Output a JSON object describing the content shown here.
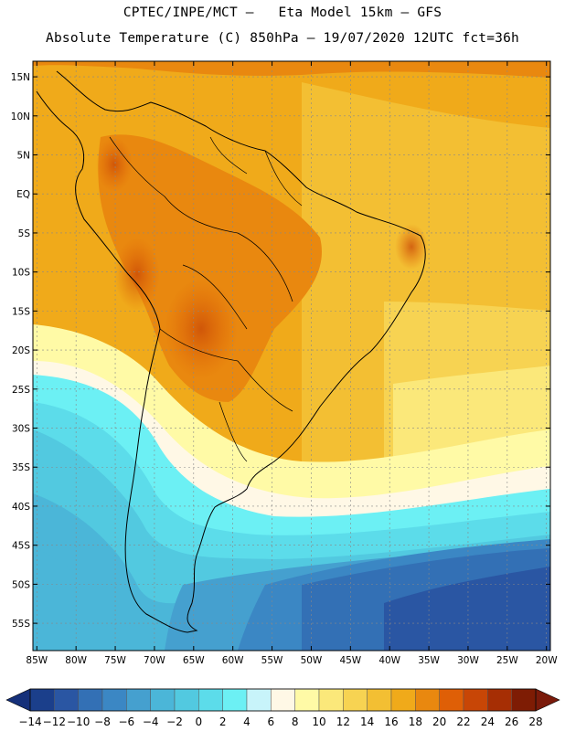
{
  "header": {
    "line1": "CPTEC/INPE/MCT –   Eta Model 15km – GFS",
    "line2": "Absolute Temperature (C) 850hPa – 19/07/2020 12UTC fct=36h"
  },
  "map": {
    "lat_labels": [
      "15N",
      "10N",
      "5N",
      "EQ",
      "5S",
      "10S",
      "15S",
      "20S",
      "25S",
      "30S",
      "35S",
      "40S",
      "45S",
      "50S",
      "55S"
    ],
    "lat_values": [
      15,
      10,
      5,
      0,
      -5,
      -10,
      -15,
      -20,
      -25,
      -30,
      -35,
      -40,
      -45,
      -50,
      -55
    ],
    "lon_labels": [
      "85W",
      "80W",
      "75W",
      "70W",
      "65W",
      "60W",
      "55W",
      "50W",
      "45W",
      "40W",
      "35W",
      "30W",
      "25W",
      "20W"
    ],
    "lon_values": [
      -85,
      -80,
      -75,
      -70,
      -65,
      -60,
      -55,
      -50,
      -45,
      -40,
      -35,
      -30,
      -25,
      -20
    ],
    "lon_range": [
      -85.5,
      -19.5
    ],
    "lat_range": [
      -58.5,
      17
    ],
    "grid": true
  },
  "colorbar": {
    "labels": [
      "-14",
      "-12",
      "-10",
      "-8",
      "-6",
      "-4",
      "-2",
      "0",
      "2",
      "4",
      "6",
      "8",
      "10",
      "12",
      "14",
      "16",
      "18",
      "20",
      "22",
      "24",
      "26",
      "28"
    ],
    "colors": [
      "#1b3f8b",
      "#2a56a3",
      "#3370b5",
      "#3b87c4",
      "#45a0cf",
      "#4bb6d8",
      "#52c9e0",
      "#5cdcea",
      "#6cf0f4",
      "#c8f4fa",
      "#fff8e6",
      "#fffaa6",
      "#fbe87a",
      "#f7d352",
      "#f3bf33",
      "#f0aa1a",
      "#e9880f",
      "#df5f06",
      "#c84606",
      "#a62e04",
      "#7e1c04"
    ],
    "under_color": "#15307a",
    "over_color": "#7a1a0a"
  }
}
